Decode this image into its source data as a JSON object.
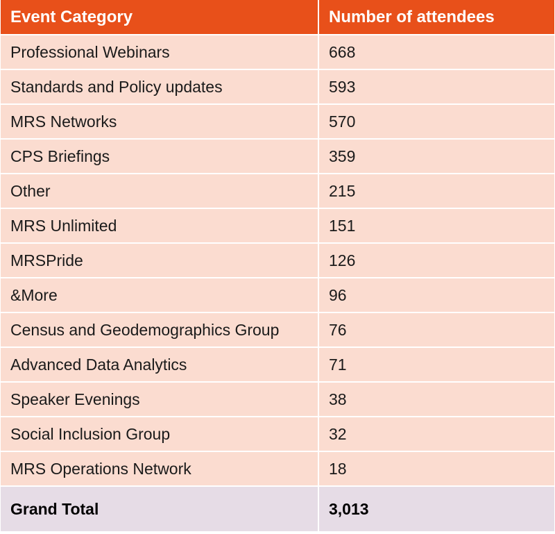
{
  "chart_data": {
    "type": "table",
    "columns": [
      "Event Category",
      "Number of attendees"
    ],
    "rows": [
      {
        "category": "Professional Webinars",
        "attendees": "668"
      },
      {
        "category": "Standards and Policy updates",
        "attendees": "593"
      },
      {
        "category": "MRS Networks",
        "attendees": "570"
      },
      {
        "category": "CPS Briefings",
        "attendees": "359"
      },
      {
        "category": "Other",
        "attendees": "215"
      },
      {
        "category": "MRS Unlimited",
        "attendees": "151"
      },
      {
        "category": "MRSPride",
        "attendees": "126"
      },
      {
        "category": "&More",
        "attendees": "96"
      },
      {
        "category": "Census and Geodemographics Group",
        "attendees": "76"
      },
      {
        "category": "Advanced Data Analytics",
        "attendees": "71"
      },
      {
        "category": "Speaker Evenings",
        "attendees": "38"
      },
      {
        "category": "Social Inclusion Group",
        "attendees": "32"
      },
      {
        "category": "MRS Operations Network",
        "attendees": "18"
      }
    ],
    "total": {
      "label": "Grand Total",
      "value": "3,013"
    }
  },
  "colors": {
    "header_bg": "#e8501a",
    "row_bg": "#fbdcd0",
    "total_bg": "#e6dce6"
  }
}
